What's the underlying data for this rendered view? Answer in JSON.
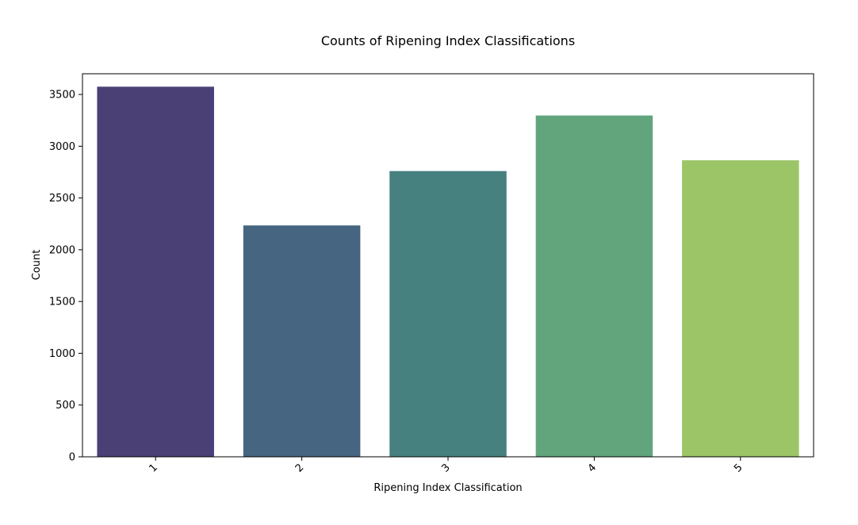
{
  "chart_data": {
    "type": "bar",
    "title": "Counts of Ripening Index Classifications",
    "xlabel": "Ripening Index Classification",
    "ylabel": "Count",
    "categories": [
      "1",
      "2",
      "3",
      "4",
      "5"
    ],
    "values": [
      3575,
      2235,
      2760,
      3297,
      2864
    ],
    "colors": [
      "#4b4076",
      "#466580",
      "#468180",
      "#62a57c",
      "#9cc567"
    ],
    "ylim": [
      0,
      3700
    ],
    "yticks": [
      0,
      500,
      1000,
      1500,
      2000,
      2500,
      3000,
      3500
    ],
    "ytick_labels": [
      "0",
      "500",
      "1000",
      "1500",
      "2000",
      "2500",
      "3000",
      "3500"
    ],
    "grid": false,
    "xtick_rotation": -45
  }
}
